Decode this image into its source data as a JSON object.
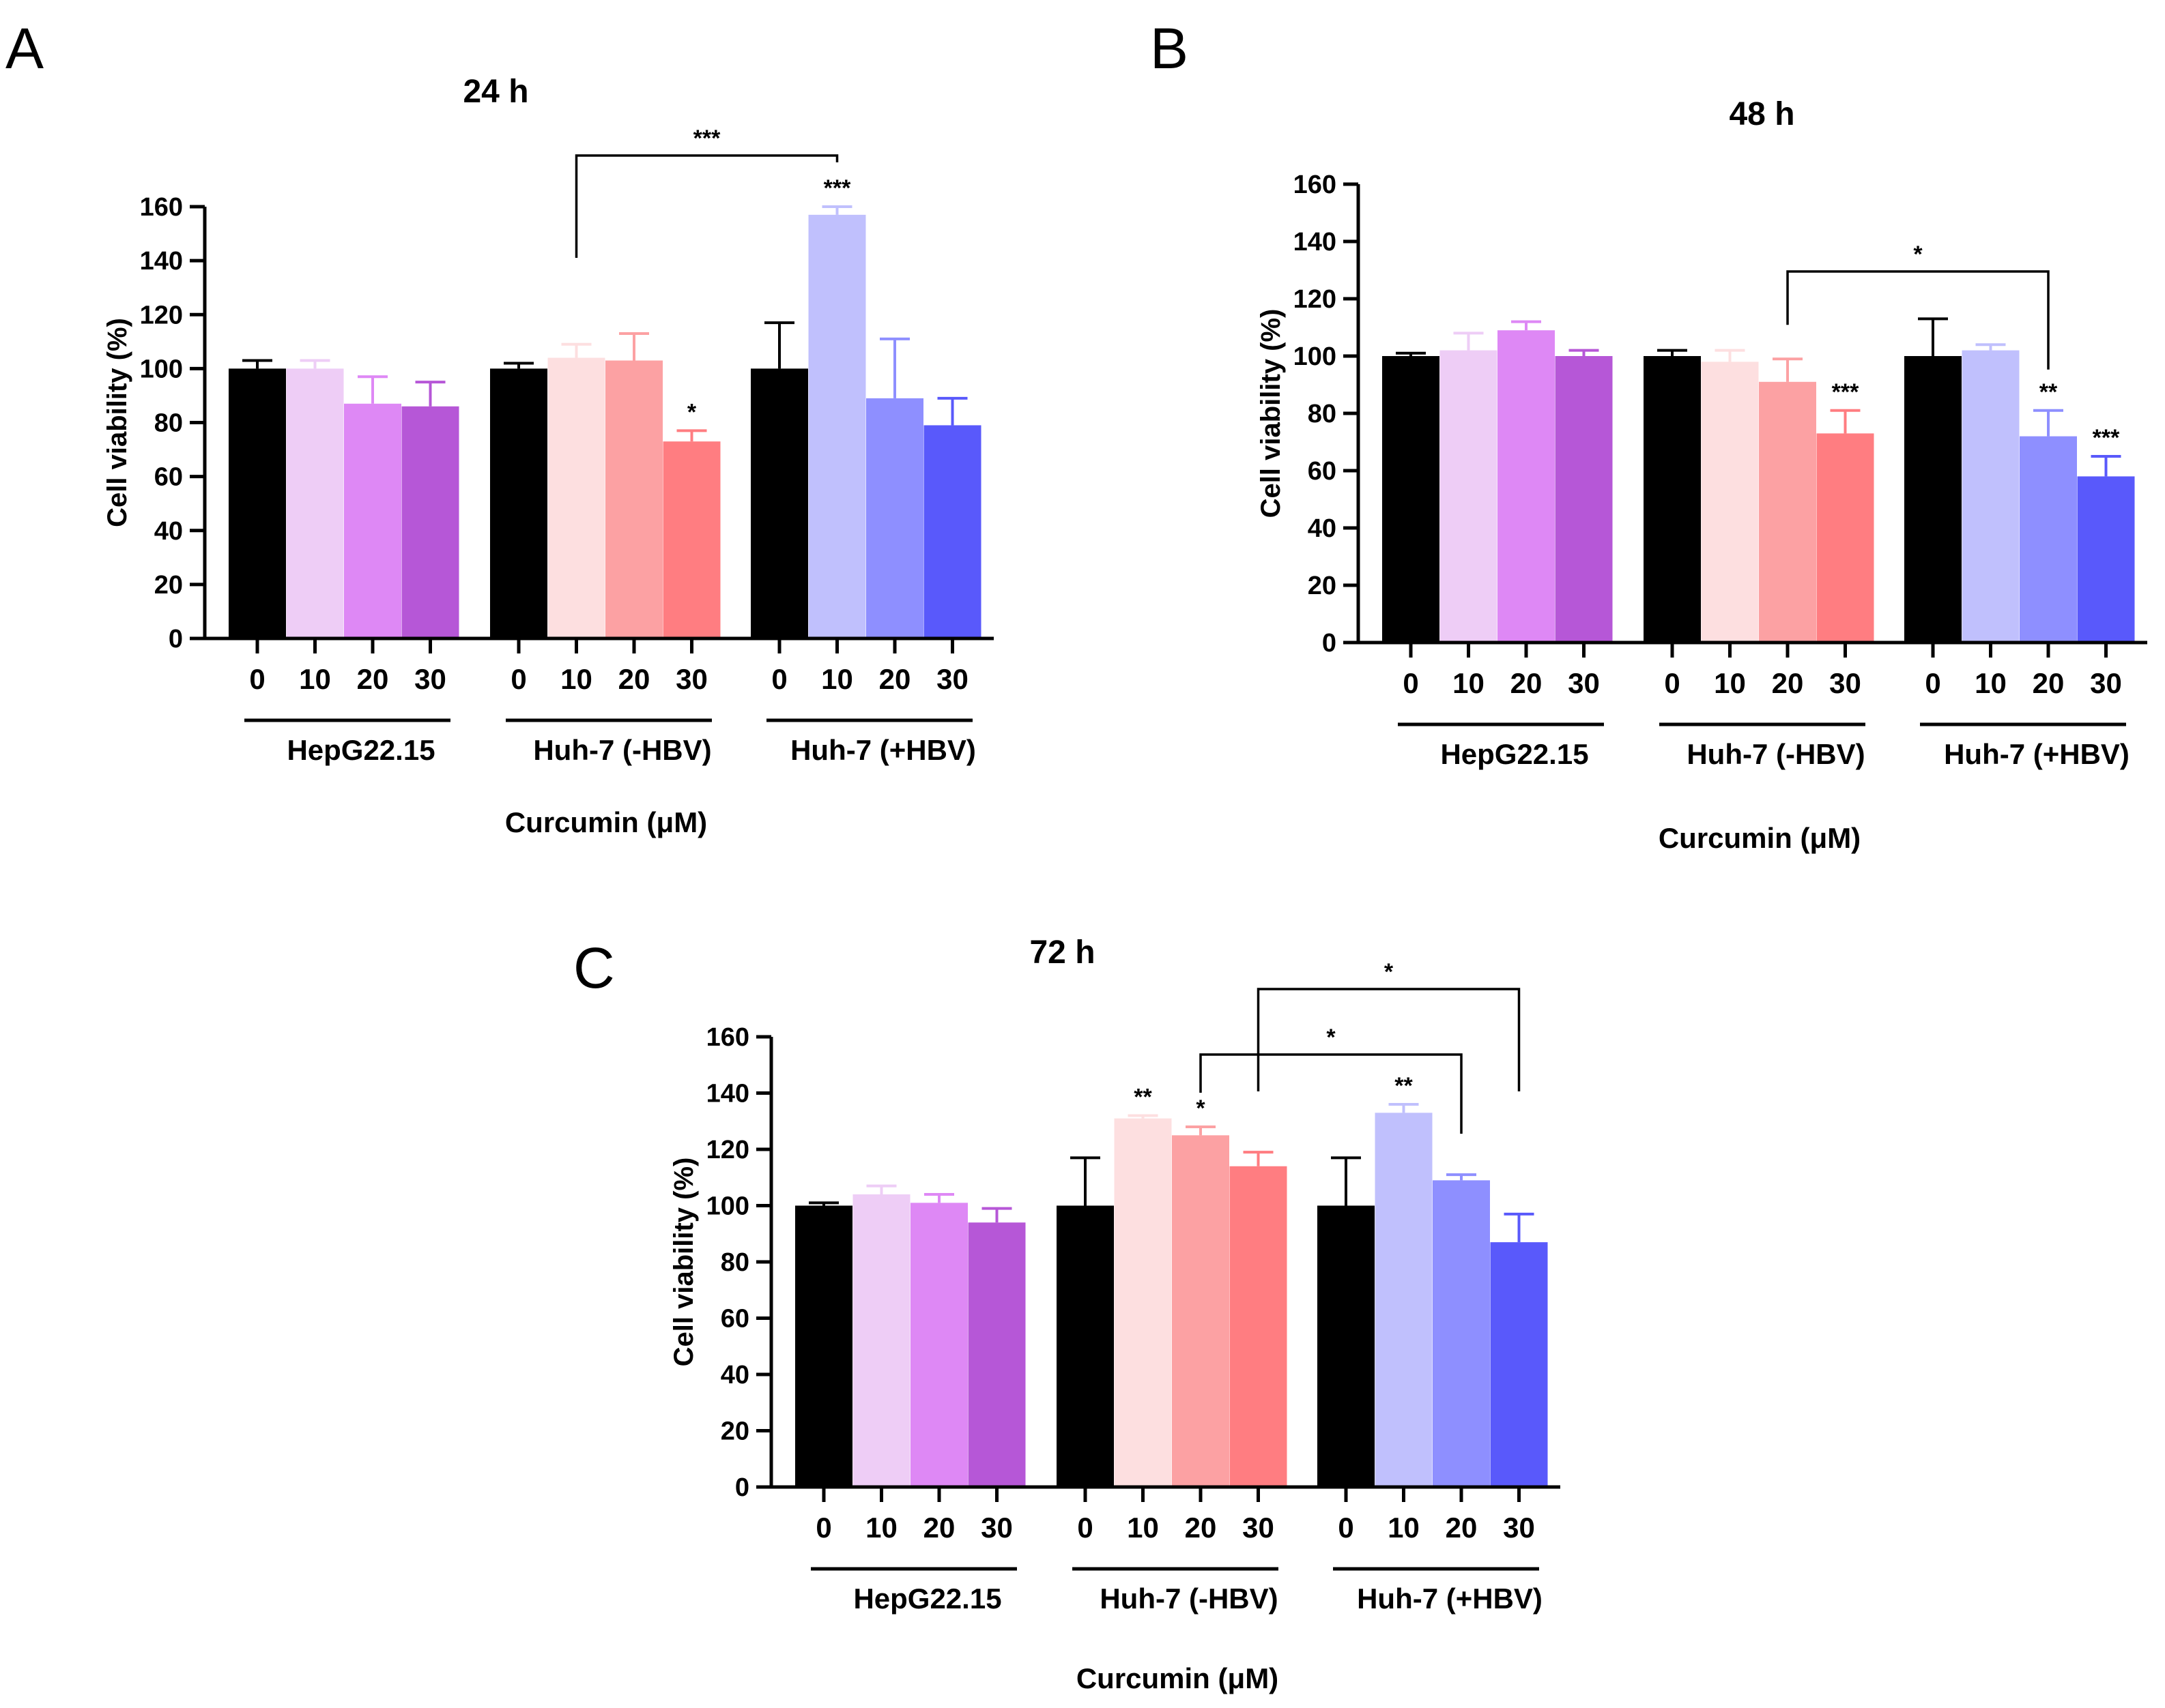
{
  "chart_data": [
    {
      "panel": "A",
      "type": "bar",
      "title": "24 h",
      "ylabel": "Cell viability (%)",
      "xlabel": "Curcumin (μM)",
      "ylim": [
        0,
        160
      ],
      "yticks": [
        0,
        20,
        40,
        60,
        80,
        100,
        120,
        140,
        160
      ],
      "categories": [
        "0",
        "10",
        "20",
        "30"
      ],
      "groups": [
        {
          "name": "HepG22.15",
          "values": [
            100,
            100,
            87,
            86
          ],
          "errors": [
            3,
            3,
            10,
            9
          ],
          "stars": [
            "",
            "",
            "",
            ""
          ]
        },
        {
          "name": "Huh-7 (-HBV)",
          "values": [
            100,
            104,
            103,
            73
          ],
          "errors": [
            2,
            5,
            10,
            4
          ],
          "stars": [
            "",
            "",
            "",
            "*"
          ]
        },
        {
          "name": "Huh-7 (+HBV)",
          "values": [
            100,
            157,
            89,
            79
          ],
          "errors": [
            17,
            3,
            22,
            10
          ],
          "stars": [
            "",
            "***",
            "",
            ""
          ]
        }
      ],
      "comparisons": [
        {
          "from": [
            1,
            1
          ],
          "to": [
            2,
            1
          ],
          "label": "***"
        }
      ]
    },
    {
      "panel": "B",
      "type": "bar",
      "title": "48 h",
      "ylabel": "Cell viability (%)",
      "xlabel": "Curcumin (μM)",
      "ylim": [
        0,
        160
      ],
      "yticks": [
        0,
        20,
        40,
        60,
        80,
        100,
        120,
        140,
        160
      ],
      "categories": [
        "0",
        "10",
        "20",
        "30"
      ],
      "groups": [
        {
          "name": "HepG22.15",
          "values": [
            100,
            102,
            109,
            100
          ],
          "errors": [
            1,
            6,
            3,
            2
          ],
          "stars": [
            "",
            "",
            "",
            ""
          ]
        },
        {
          "name": "Huh-7 (-HBV)",
          "values": [
            100,
            98,
            91,
            73
          ],
          "errors": [
            2,
            4,
            8,
            8
          ],
          "stars": [
            "",
            "",
            "",
            "***"
          ]
        },
        {
          "name": "Huh-7 (+HBV)",
          "values": [
            100,
            102,
            72,
            58
          ],
          "errors": [
            13,
            2,
            9,
            7
          ],
          "stars": [
            "",
            "",
            "**",
            "***"
          ]
        }
      ],
      "comparisons": [
        {
          "from": [
            1,
            2
          ],
          "to": [
            2,
            2
          ],
          "label": "*"
        }
      ]
    },
    {
      "panel": "C",
      "type": "bar",
      "title": "72 h",
      "ylabel": "Cell viability (%)",
      "xlabel": "Curcumin (μM)",
      "ylim": [
        0,
        160
      ],
      "yticks": [
        0,
        20,
        40,
        60,
        80,
        100,
        120,
        140,
        160
      ],
      "categories": [
        "0",
        "10",
        "20",
        "30"
      ],
      "groups": [
        {
          "name": "HepG22.15",
          "values": [
            100,
            104,
            101,
            94
          ],
          "errors": [
            1,
            3,
            3,
            5
          ],
          "stars": [
            "",
            "",
            "",
            ""
          ]
        },
        {
          "name": "Huh-7 (-HBV)",
          "values": [
            100,
            131,
            125,
            114
          ],
          "errors": [
            17,
            1,
            3,
            5
          ],
          "stars": [
            "",
            "**",
            "*",
            ""
          ]
        },
        {
          "name": "Huh-7 (+HBV)",
          "values": [
            100,
            133,
            109,
            87
          ],
          "errors": [
            17,
            3,
            2,
            10
          ],
          "stars": [
            "",
            "**",
            "",
            ""
          ]
        }
      ],
      "comparisons": [
        {
          "from": [
            1,
            3
          ],
          "to": [
            2,
            3
          ],
          "label": "*"
        },
        {
          "from": [
            1,
            2
          ],
          "to": [
            2,
            2
          ],
          "label": "*"
        }
      ]
    }
  ],
  "colors": {
    "control": "#000000",
    "HepG22.15": [
      "#000000",
      "#eecdf6",
      "#de88f5",
      "#b657d7"
    ],
    "Huh-7 (-HBV)": [
      "#000000",
      "#fddfe0",
      "#fca1a3",
      "#ff7d81"
    ],
    "Huh-7 (+HBV)": [
      "#000000",
      "#c0c0fd",
      "#8e8fff",
      "#5959fb"
    ]
  }
}
